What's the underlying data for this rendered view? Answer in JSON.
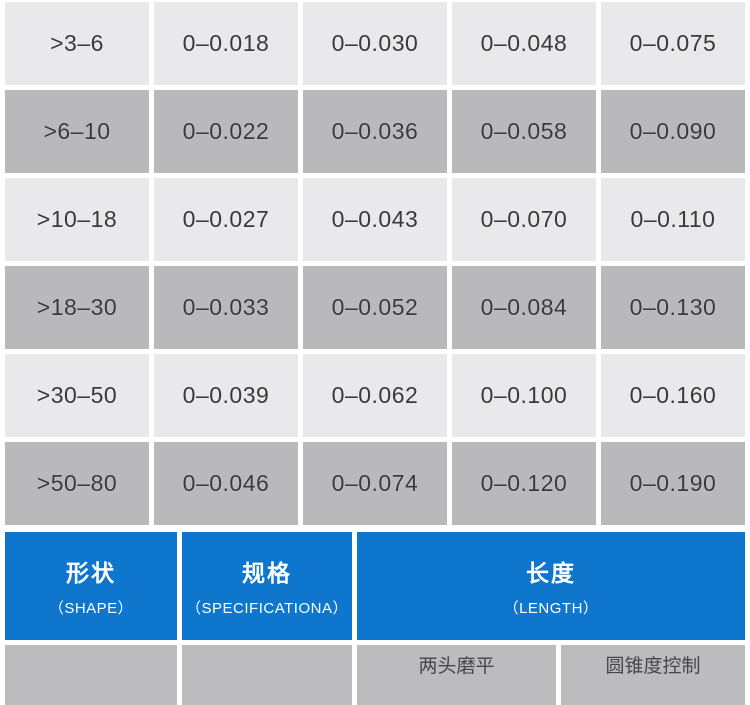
{
  "colors": {
    "row_light": "#e9e9eb",
    "row_dark": "#b9b9bc",
    "header_blue": "#0e76cd",
    "cell_text": "#39393c",
    "header_text": "#ffffff"
  },
  "tolerance_table": {
    "rows": [
      {
        "range": ">3–6",
        "values": [
          "0–0.018",
          "0–0.030",
          "0–0.048",
          "0–0.075"
        ]
      },
      {
        "range": ">6–10",
        "values": [
          "0–0.022",
          "0–0.036",
          "0–0.058",
          "0–0.090"
        ]
      },
      {
        "range": ">10–18",
        "values": [
          "0–0.027",
          "0–0.043",
          "0–0.070",
          "0–0.110"
        ]
      },
      {
        "range": ">18–30",
        "values": [
          "0–0.033",
          "0–0.052",
          "0–0.084",
          "0–0.130"
        ]
      },
      {
        "range": ">30–50",
        "values": [
          "0–0.039",
          "0–0.062",
          "0–0.100",
          "0–0.160"
        ]
      },
      {
        "range": ">50–80",
        "values": [
          "0–0.046",
          "0–0.074",
          "0–0.120",
          "0–0.190"
        ]
      }
    ]
  },
  "spec_header": {
    "shape_zh": "形状",
    "shape_en": "（SHAPE）",
    "spec_zh": "规格",
    "spec_en": "（SPECIFICATIONA）",
    "length_zh": "长度",
    "length_en": "（LENGTH）"
  },
  "partial_row": {
    "cell_a": "",
    "cell_b": "",
    "cell_c1": "两头磨平",
    "cell_c2": "圆锥度控制"
  }
}
